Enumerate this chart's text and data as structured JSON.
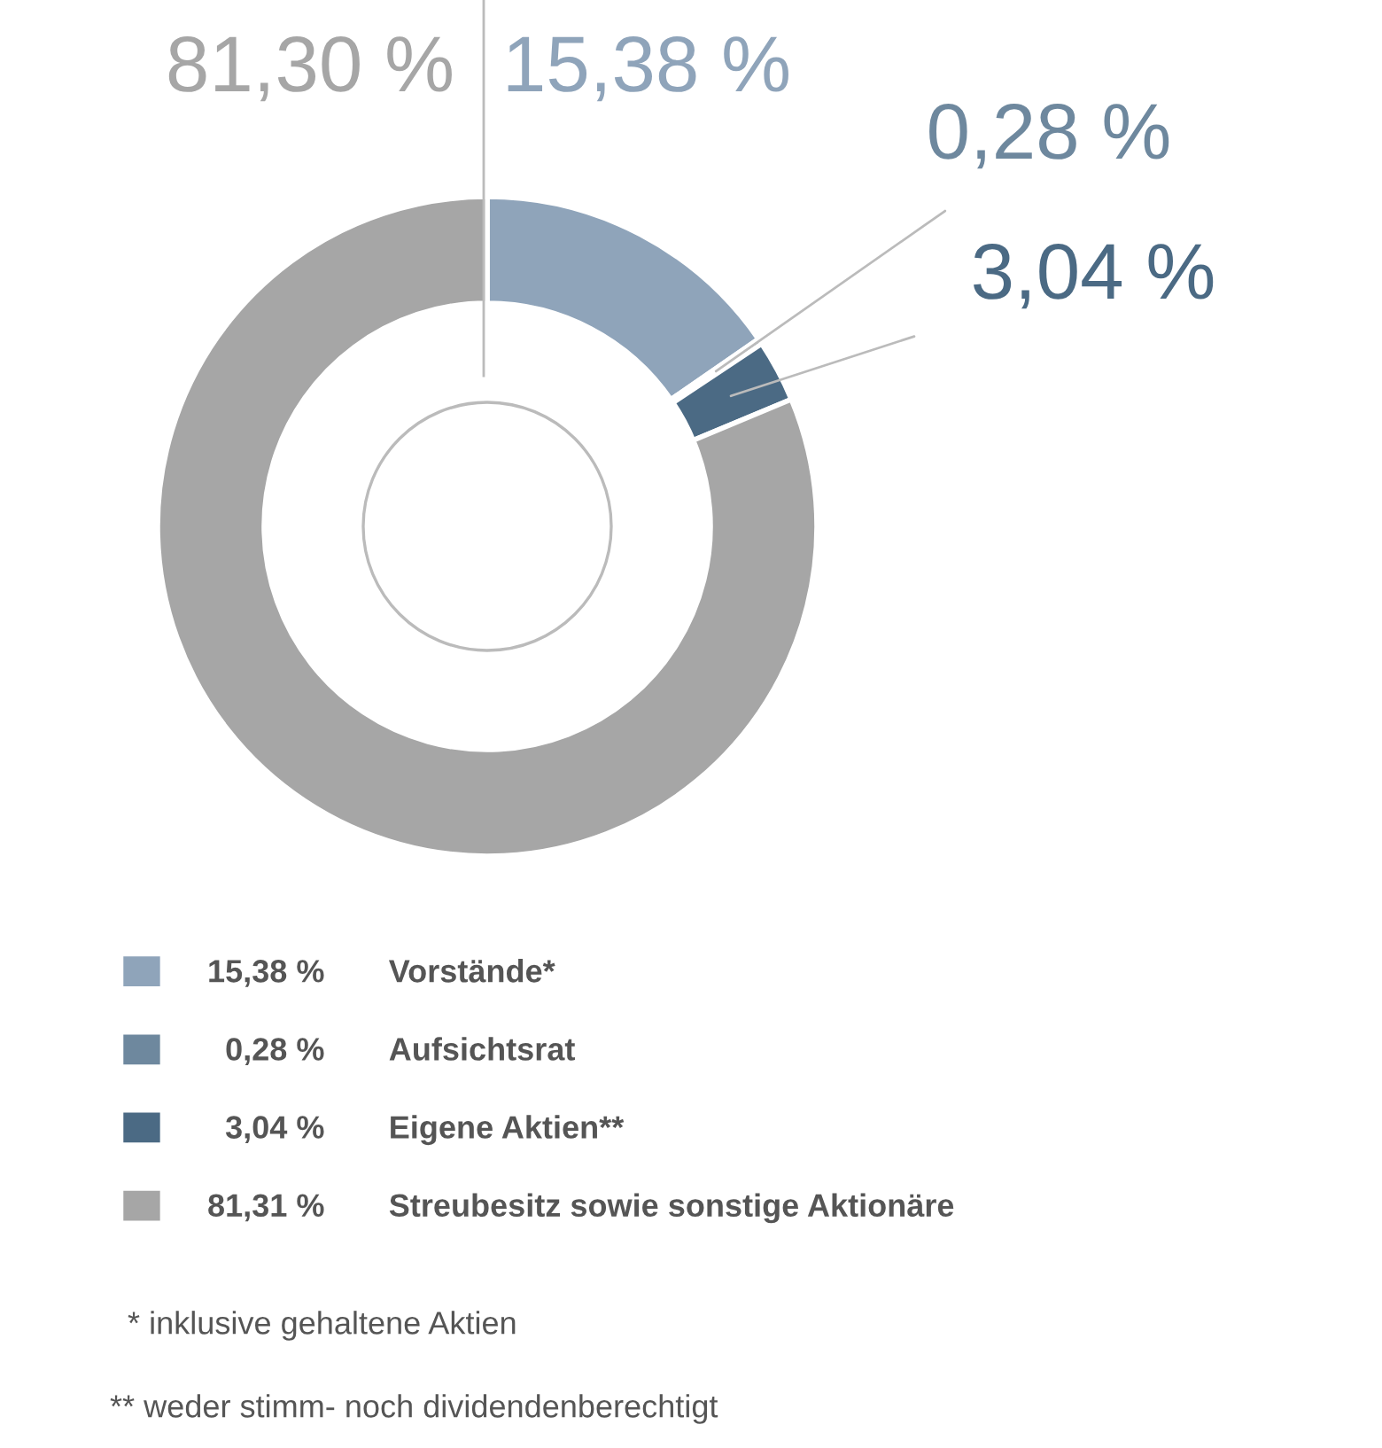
{
  "chart_data": {
    "type": "donut",
    "categories": [
      "Vorstände*",
      "Aufsichtsrat",
      "Eigene Aktien**",
      "Streubesitz sowie sonstige Aktionäre"
    ],
    "values": [
      15.38,
      0.28,
      3.04,
      81.3
    ],
    "colors": [
      "#8fa4ba",
      "#6e889e",
      "#4b6a84",
      "#a6a6a6"
    ],
    "value_labels": [
      "15,38 %",
      "0,28 %",
      "3,04 %",
      "81,30 %"
    ],
    "legend": "bottom",
    "annotations": [
      "15,38 %",
      "0,28 %",
      "3,04 %",
      "81,31 %",
      "* inklusive gehaltene Aktien",
      "** weder stimm- noch dividendenberechtigt"
    ]
  }
}
